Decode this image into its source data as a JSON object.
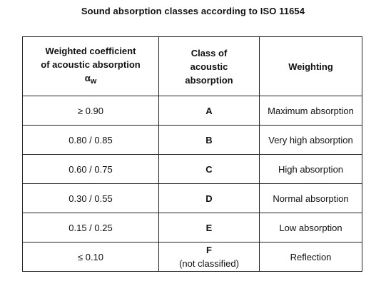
{
  "title": "Sound absorption classes according to ISO 11654",
  "table": {
    "headers": {
      "coefficient_line1": "Weighted coefficient",
      "coefficient_line2": "of acoustic absorption",
      "coefficient_symbol": "α",
      "coefficient_subscript": "w",
      "class_line1": "Class of",
      "class_line2": "acoustic",
      "class_line3": "absorption",
      "weighting": "Weighting"
    },
    "rows": [
      {
        "coefficient": "≥ 0.90",
        "class": "A",
        "class_note": "",
        "weighting": "Maximum absorption"
      },
      {
        "coefficient": "0.80 / 0.85",
        "class": "B",
        "class_note": "",
        "weighting": "Very high absorption"
      },
      {
        "coefficient": "0.60 / 0.75",
        "class": "C",
        "class_note": "",
        "weighting": "High absorption"
      },
      {
        "coefficient": "0.30 / 0.55",
        "class": "D",
        "class_note": "",
        "weighting": "Normal absorption"
      },
      {
        "coefficient": "0.15 / 0.25",
        "class": "E",
        "class_note": "",
        "weighting": "Low absorption"
      },
      {
        "coefficient": "≤ 0.10",
        "class": "F",
        "class_note": "(not classified)",
        "weighting": "Reflection"
      }
    ]
  }
}
